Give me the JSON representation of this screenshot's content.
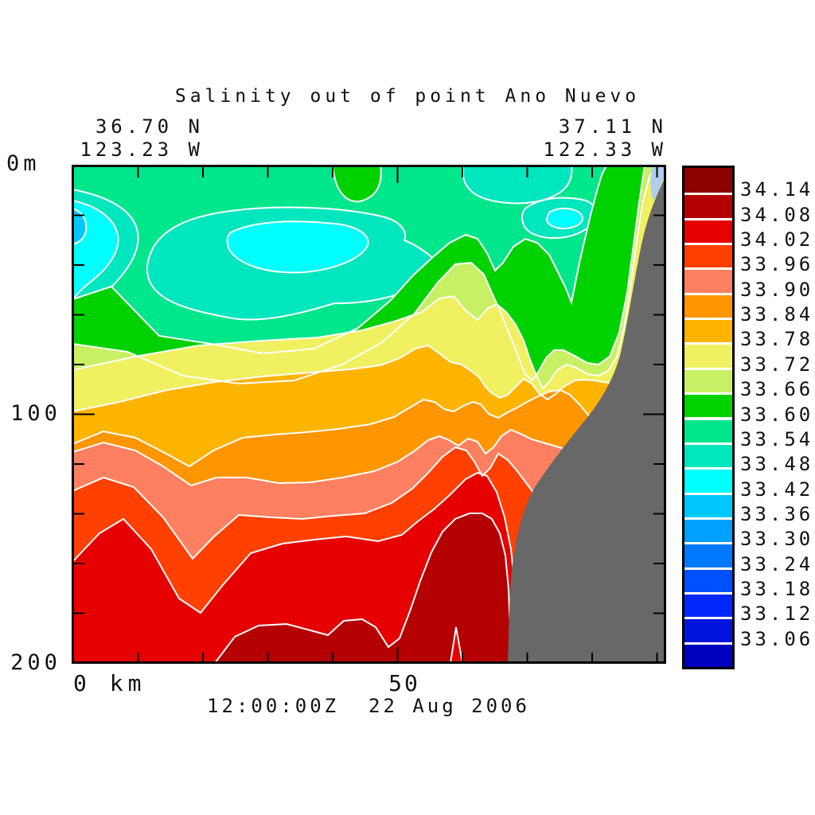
{
  "title": "Salinity out of point Ano Nuevo",
  "transect": {
    "left_lat": "36.70 N",
    "left_lon": "123.23 W",
    "right_lat": "37.11 N",
    "right_lon": "122.33 W"
  },
  "time_label": "12:00:00Z  22 Aug 2006",
  "axis_labels": {
    "y_top": "0m",
    "y_mid": "100",
    "y_bottom": "200",
    "x_left": "0 km",
    "x_mid": "50"
  },
  "colorbar": {
    "values": [
      "34.14",
      "34.08",
      "34.02",
      "33.96",
      "33.90",
      "33.84",
      "33.78",
      "33.72",
      "33.66",
      "33.60",
      "33.54",
      "33.48",
      "33.42",
      "33.36",
      "33.30",
      "33.24",
      "33.18",
      "33.12",
      "33.06"
    ],
    "colors_top_to_bottom": [
      "#8c0000",
      "#b40000",
      "#e60000",
      "#ff4000",
      "#ff8060",
      "#ff9600",
      "#ffb400",
      "#f0f060",
      "#c8f064",
      "#00d200",
      "#00e68c",
      "#00e6be",
      "#00ffff",
      "#00c8ff",
      "#00a0ff",
      "#0078ff",
      "#0050ff",
      "#0028fa",
      "#0014dc",
      "#0000be"
    ]
  },
  "chart_data": {
    "type": "filled_contour_cross_section",
    "title": "Salinity out of point Ano Nuevo",
    "time": "12:00:00Z  22 Aug 2006",
    "x_axis": {
      "label_shown": "0 km / 50",
      "units": "km",
      "range": [
        0,
        91
      ],
      "tick_interval": 10,
      "labeled_ticks": [
        0,
        50
      ]
    },
    "y_axis": {
      "label_shown": "0m / 100 / 200",
      "units": "m depth",
      "range": [
        0,
        200
      ],
      "tick_interval": 20,
      "labeled_ticks": [
        0,
        100,
        200
      ]
    },
    "endpoints": {
      "offshore": "36.70 N 123.23 W",
      "coastal": "37.11 N 122.33 W"
    },
    "contour_levels": [
      33.06,
      33.12,
      33.18,
      33.24,
      33.3,
      33.36,
      33.42,
      33.48,
      33.54,
      33.6,
      33.66,
      33.72,
      33.78,
      33.84,
      33.9,
      33.96,
      34.02,
      34.08,
      34.14
    ],
    "palette_low_to_high": [
      "#0000be",
      "#0014dc",
      "#0028fa",
      "#0050ff",
      "#0078ff",
      "#00a0ff",
      "#00c8ff",
      "#00ffff",
      "#00e6be",
      "#00e68c",
      "#00d200",
      "#c8f064",
      "#f0f060",
      "#ffb400",
      "#ff9600",
      "#ff8060",
      "#ff4000",
      "#e60000",
      "#b40000",
      "#8c0000"
    ],
    "surface_layer": "mostly 33.54-33.60, patches down to 33.36-33.48 (cyan blobs near 0-5 km and 55-80 km, 10-45 m depth), patches 33.60-33.66 near surface at 40-48 km and 68-88 km",
    "isohaline_depth_profiles_m_at_km": {
      "33.60": [
        [
          0,
          54
        ],
        [
          10,
          66
        ],
        [
          20,
          71
        ],
        [
          30,
          76
        ],
        [
          40,
          71
        ],
        [
          50,
          47
        ],
        [
          60,
          30
        ],
        [
          70,
          26
        ],
        [
          80,
          10
        ]
      ],
      "33.66": [
        [
          0,
          72
        ],
        [
          10,
          77
        ],
        [
          20,
          86
        ],
        [
          30,
          88
        ],
        [
          40,
          80
        ],
        [
          50,
          55
        ],
        [
          60,
          52
        ],
        [
          70,
          75
        ],
        [
          82,
          20
        ]
      ],
      "33.72": [
        [
          0,
          82
        ],
        [
          10,
          77
        ],
        [
          20,
          72
        ],
        [
          30,
          70
        ],
        [
          40,
          67
        ],
        [
          50,
          57
        ],
        [
          60,
          63
        ],
        [
          70,
          80
        ],
        [
          84,
          30
        ]
      ],
      "33.78": [
        [
          0,
          99
        ],
        [
          10,
          95
        ],
        [
          20,
          89
        ],
        [
          30,
          85
        ],
        [
          40,
          82
        ],
        [
          50,
          73
        ],
        [
          60,
          85
        ],
        [
          70,
          80
        ],
        [
          80,
          88
        ]
      ],
      "33.84": [
        [
          0,
          112
        ],
        [
          10,
          107
        ],
        [
          20,
          118
        ],
        [
          30,
          108
        ],
        [
          40,
          105
        ],
        [
          50,
          96
        ],
        [
          60,
          103
        ],
        [
          70,
          91
        ],
        [
          78,
          100
        ]
      ],
      "33.90": [
        [
          0,
          115
        ],
        [
          10,
          113
        ],
        [
          20,
          126
        ],
        [
          30,
          126
        ],
        [
          40,
          124
        ],
        [
          50,
          111
        ],
        [
          60,
          114
        ],
        [
          70,
          113
        ]
      ],
      "33.96": [
        [
          0,
          131
        ],
        [
          10,
          128
        ],
        [
          20,
          155
        ],
        [
          30,
          141
        ],
        [
          40,
          140
        ],
        [
          50,
          123
        ],
        [
          62,
          125
        ]
      ],
      "34.02": [
        [
          0,
          159
        ],
        [
          10,
          144
        ],
        [
          20,
          177
        ],
        [
          30,
          152
        ],
        [
          40,
          149
        ],
        [
          50,
          135
        ],
        [
          62,
          140
        ]
      ],
      "34.08": [
        [
          22,
          200
        ],
        [
          28,
          185
        ],
        [
          36,
          185
        ],
        [
          44,
          192
        ],
        [
          50,
          158
        ],
        [
          56,
          141
        ],
        [
          64,
          152
        ],
        [
          67,
          200
        ]
      ]
    },
    "seafloor_mask_gray_profile_km_depth_m": [
      [
        67,
        200
      ],
      [
        69,
        145
      ],
      [
        71,
        129
      ],
      [
        76,
        110
      ],
      [
        82,
        92
      ],
      [
        84,
        74
      ],
      [
        87,
        44
      ],
      [
        89,
        21
      ],
      [
        91,
        5
      ]
    ],
    "notes": "Isohalines shoal toward the coast (right); gray wedge = seafloor/bathymetry; grid off; colorbar legend on right"
  }
}
